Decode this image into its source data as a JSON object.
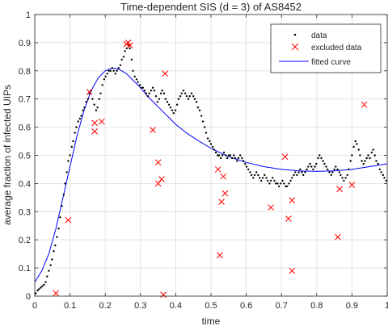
{
  "chart_data": {
    "type": "scatter",
    "title": "Time-dependent SIS (d = 3) of AS8452",
    "xlabel": "time",
    "ylabel": "average fraction of infected UIPs",
    "xlim": [
      0,
      1
    ],
    "ylim": [
      0,
      1
    ],
    "xticks": [
      "0",
      "0.1",
      "0.2",
      "0.3",
      "0.4",
      "0.5",
      "0.6",
      "0.7",
      "0.8",
      "0.9",
      "1"
    ],
    "yticks": [
      "0",
      "0.1",
      "0.2",
      "0.3",
      "0.4",
      "0.5",
      "0.6",
      "0.7",
      "0.8",
      "0.9",
      "1"
    ],
    "grid": true,
    "legend_position": "top-right",
    "series": [
      {
        "name": "data",
        "marker": "dot",
        "color": "#000000",
        "points": [
          [
            0.003,
            0.01
          ],
          [
            0.008,
            0.02
          ],
          [
            0.012,
            0.025
          ],
          [
            0.017,
            0.03
          ],
          [
            0.021,
            0.035
          ],
          [
            0.026,
            0.04
          ],
          [
            0.031,
            0.05
          ],
          [
            0.035,
            0.07
          ],
          [
            0.04,
            0.09
          ],
          [
            0.045,
            0.11
          ],
          [
            0.049,
            0.13
          ],
          [
            0.054,
            0.16
          ],
          [
            0.058,
            0.18
          ],
          [
            0.063,
            0.21
          ],
          [
            0.068,
            0.24
          ],
          [
            0.072,
            0.28
          ],
          [
            0.077,
            0.32
          ],
          [
            0.082,
            0.36
          ],
          [
            0.086,
            0.4
          ],
          [
            0.091,
            0.44
          ],
          [
            0.095,
            0.48
          ],
          [
            0.1,
            0.5
          ],
          [
            0.105,
            0.53
          ],
          [
            0.109,
            0.55
          ],
          [
            0.114,
            0.58
          ],
          [
            0.118,
            0.6
          ],
          [
            0.123,
            0.62
          ],
          [
            0.128,
            0.63
          ],
          [
            0.132,
            0.64
          ],
          [
            0.137,
            0.66
          ],
          [
            0.141,
            0.67
          ],
          [
            0.146,
            0.69
          ],
          [
            0.151,
            0.7
          ],
          [
            0.155,
            0.72
          ],
          [
            0.16,
            0.73
          ],
          [
            0.164,
            0.7
          ],
          [
            0.169,
            0.68
          ],
          [
            0.174,
            0.66
          ],
          [
            0.178,
            0.67
          ],
          [
            0.183,
            0.7
          ],
          [
            0.187,
            0.72
          ],
          [
            0.192,
            0.75
          ],
          [
            0.197,
            0.77
          ],
          [
            0.201,
            0.78
          ],
          [
            0.206,
            0.79
          ],
          [
            0.21,
            0.8
          ],
          [
            0.215,
            0.8
          ],
          [
            0.22,
            0.81
          ],
          [
            0.224,
            0.8
          ],
          [
            0.229,
            0.79
          ],
          [
            0.233,
            0.8
          ],
          [
            0.238,
            0.81
          ],
          [
            0.243,
            0.82
          ],
          [
            0.247,
            0.84
          ],
          [
            0.252,
            0.85
          ],
          [
            0.256,
            0.87
          ],
          [
            0.261,
            0.88
          ],
          [
            0.266,
            0.89
          ],
          [
            0.27,
            0.88
          ],
          [
            0.275,
            0.84
          ],
          [
            0.279,
            0.8
          ],
          [
            0.284,
            0.78
          ],
          [
            0.289,
            0.77
          ],
          [
            0.293,
            0.76
          ],
          [
            0.298,
            0.75
          ],
          [
            0.302,
            0.74
          ],
          [
            0.307,
            0.74
          ],
          [
            0.312,
            0.73
          ],
          [
            0.316,
            0.72
          ],
          [
            0.321,
            0.71
          ],
          [
            0.325,
            0.72
          ],
          [
            0.33,
            0.73
          ],
          [
            0.335,
            0.74
          ],
          [
            0.339,
            0.73
          ],
          [
            0.344,
            0.71
          ],
          [
            0.348,
            0.69
          ],
          [
            0.353,
            0.7
          ],
          [
            0.358,
            0.72
          ],
          [
            0.362,
            0.73
          ],
          [
            0.367,
            0.72
          ],
          [
            0.371,
            0.7
          ],
          [
            0.376,
            0.69
          ],
          [
            0.381,
            0.68
          ],
          [
            0.385,
            0.67
          ],
          [
            0.39,
            0.66
          ],
          [
            0.394,
            0.65
          ],
          [
            0.399,
            0.66
          ],
          [
            0.404,
            0.68
          ],
          [
            0.408,
            0.7
          ],
          [
            0.413,
            0.71
          ],
          [
            0.417,
            0.72
          ],
          [
            0.422,
            0.73
          ],
          [
            0.427,
            0.72
          ],
          [
            0.431,
            0.71
          ],
          [
            0.436,
            0.7
          ],
          [
            0.44,
            0.71
          ],
          [
            0.445,
            0.72
          ],
          [
            0.45,
            0.71
          ],
          [
            0.454,
            0.7
          ],
          [
            0.459,
            0.69
          ],
          [
            0.463,
            0.67
          ],
          [
            0.468,
            0.66
          ],
          [
            0.473,
            0.64
          ],
          [
            0.477,
            0.62
          ],
          [
            0.482,
            0.6
          ],
          [
            0.486,
            0.58
          ],
          [
            0.491,
            0.56
          ],
          [
            0.496,
            0.55
          ],
          [
            0.5,
            0.54
          ],
          [
            0.505,
            0.53
          ],
          [
            0.509,
            0.52
          ],
          [
            0.514,
            0.51
          ],
          [
            0.519,
            0.5
          ],
          [
            0.523,
            0.5
          ],
          [
            0.528,
            0.49
          ],
          [
            0.532,
            0.5
          ],
          [
            0.537,
            0.51
          ],
          [
            0.542,
            0.5
          ],
          [
            0.546,
            0.49
          ],
          [
            0.551,
            0.5
          ],
          [
            0.555,
            0.5
          ],
          [
            0.56,
            0.49
          ],
          [
            0.565,
            0.5
          ],
          [
            0.569,
            0.49
          ],
          [
            0.574,
            0.48
          ],
          [
            0.578,
            0.49
          ],
          [
            0.583,
            0.5
          ],
          [
            0.588,
            0.49
          ],
          [
            0.592,
            0.48
          ],
          [
            0.597,
            0.47
          ],
          [
            0.601,
            0.46
          ],
          [
            0.606,
            0.45
          ],
          [
            0.611,
            0.44
          ],
          [
            0.615,
            0.43
          ],
          [
            0.62,
            0.42
          ],
          [
            0.624,
            0.43
          ],
          [
            0.629,
            0.44
          ],
          [
            0.634,
            0.43
          ],
          [
            0.638,
            0.42
          ],
          [
            0.643,
            0.41
          ],
          [
            0.647,
            0.42
          ],
          [
            0.652,
            0.43
          ],
          [
            0.657,
            0.42
          ],
          [
            0.661,
            0.41
          ],
          [
            0.666,
            0.4
          ],
          [
            0.67,
            0.41
          ],
          [
            0.675,
            0.42
          ],
          [
            0.68,
            0.41
          ],
          [
            0.684,
            0.4
          ],
          [
            0.689,
            0.4
          ],
          [
            0.693,
            0.39
          ],
          [
            0.698,
            0.4
          ],
          [
            0.703,
            0.41
          ],
          [
            0.707,
            0.4
          ],
          [
            0.712,
            0.39
          ],
          [
            0.716,
            0.39
          ],
          [
            0.721,
            0.4
          ],
          [
            0.726,
            0.41
          ],
          [
            0.73,
            0.42
          ],
          [
            0.735,
            0.43
          ],
          [
            0.739,
            0.44
          ],
          [
            0.744,
            0.43
          ],
          [
            0.749,
            0.44
          ],
          [
            0.753,
            0.45
          ],
          [
            0.758,
            0.44
          ],
          [
            0.762,
            0.43
          ],
          [
            0.767,
            0.44
          ],
          [
            0.772,
            0.45
          ],
          [
            0.776,
            0.46
          ],
          [
            0.781,
            0.47
          ],
          [
            0.785,
            0.46
          ],
          [
            0.79,
            0.45
          ],
          [
            0.795,
            0.46
          ],
          [
            0.799,
            0.47
          ],
          [
            0.804,
            0.49
          ],
          [
            0.808,
            0.5
          ],
          [
            0.813,
            0.49
          ],
          [
            0.818,
            0.48
          ],
          [
            0.822,
            0.47
          ],
          [
            0.827,
            0.46
          ],
          [
            0.831,
            0.45
          ],
          [
            0.836,
            0.44
          ],
          [
            0.841,
            0.43
          ],
          [
            0.845,
            0.44
          ],
          [
            0.85,
            0.45
          ],
          [
            0.854,
            0.46
          ],
          [
            0.859,
            0.45
          ],
          [
            0.864,
            0.44
          ],
          [
            0.868,
            0.43
          ],
          [
            0.873,
            0.42
          ],
          [
            0.877,
            0.41
          ],
          [
            0.882,
            0.42
          ],
          [
            0.887,
            0.43
          ],
          [
            0.891,
            0.45
          ],
          [
            0.896,
            0.48
          ],
          [
            0.9,
            0.5
          ],
          [
            0.905,
            0.53
          ],
          [
            0.91,
            0.55
          ],
          [
            0.914,
            0.54
          ],
          [
            0.919,
            0.52
          ],
          [
            0.923,
            0.5
          ],
          [
            0.928,
            0.48
          ],
          [
            0.933,
            0.47
          ],
          [
            0.937,
            0.48
          ],
          [
            0.942,
            0.49
          ],
          [
            0.946,
            0.5
          ],
          [
            0.951,
            0.49
          ],
          [
            0.956,
            0.51
          ],
          [
            0.96,
            0.52
          ],
          [
            0.965,
            0.5
          ],
          [
            0.969,
            0.48
          ],
          [
            0.974,
            0.47
          ],
          [
            0.979,
            0.45
          ],
          [
            0.983,
            0.44
          ],
          [
            0.988,
            0.43
          ],
          [
            0.992,
            0.42
          ],
          [
            0.997,
            0.41
          ]
        ]
      },
      {
        "name": "excluded data",
        "marker": "x",
        "color": "#ff0000",
        "points": [
          [
            0.06,
            0.01
          ],
          [
            0.095,
            0.27
          ],
          [
            0.155,
            0.725
          ],
          [
            0.17,
            0.615
          ],
          [
            0.17,
            0.585
          ],
          [
            0.19,
            0.62
          ],
          [
            0.26,
            0.895
          ],
          [
            0.265,
            0.9
          ],
          [
            0.27,
            0.89
          ],
          [
            0.335,
            0.59
          ],
          [
            0.35,
            0.475
          ],
          [
            0.35,
            0.4
          ],
          [
            0.36,
            0.415
          ],
          [
            0.365,
            0.005
          ],
          [
            0.37,
            0.79
          ],
          [
            0.52,
            0.45
          ],
          [
            0.53,
            0.335
          ],
          [
            0.535,
            0.425
          ],
          [
            0.54,
            0.365
          ],
          [
            0.525,
            0.145
          ],
          [
            0.67,
            0.315
          ],
          [
            0.71,
            0.495
          ],
          [
            0.72,
            0.275
          ],
          [
            0.73,
            0.34
          ],
          [
            0.73,
            0.09
          ],
          [
            0.86,
            0.21
          ],
          [
            0.865,
            0.38
          ],
          [
            0.9,
            0.395
          ],
          [
            0.935,
            0.68
          ]
        ]
      },
      {
        "name": "fitted curve",
        "marker": "line",
        "color": "#0000ff",
        "points": [
          [
            0,
            0.05
          ],
          [
            0.02,
            0.09
          ],
          [
            0.04,
            0.15
          ],
          [
            0.06,
            0.24
          ],
          [
            0.08,
            0.35
          ],
          [
            0.1,
            0.46
          ],
          [
            0.12,
            0.57
          ],
          [
            0.14,
            0.66
          ],
          [
            0.16,
            0.73
          ],
          [
            0.18,
            0.775
          ],
          [
            0.2,
            0.8
          ],
          [
            0.22,
            0.81
          ],
          [
            0.24,
            0.805
          ],
          [
            0.26,
            0.79
          ],
          [
            0.28,
            0.765
          ],
          [
            0.3,
            0.74
          ],
          [
            0.32,
            0.71
          ],
          [
            0.34,
            0.685
          ],
          [
            0.36,
            0.66
          ],
          [
            0.38,
            0.635
          ],
          [
            0.4,
            0.61
          ],
          [
            0.43,
            0.58
          ],
          [
            0.46,
            0.555
          ],
          [
            0.5,
            0.525
          ],
          [
            0.55,
            0.495
          ],
          [
            0.6,
            0.475
          ],
          [
            0.65,
            0.46
          ],
          [
            0.7,
            0.45
          ],
          [
            0.75,
            0.445
          ],
          [
            0.8,
            0.443
          ],
          [
            0.85,
            0.445
          ],
          [
            0.9,
            0.45
          ],
          [
            0.95,
            0.46
          ],
          [
            1,
            0.47
          ]
        ]
      }
    ]
  }
}
